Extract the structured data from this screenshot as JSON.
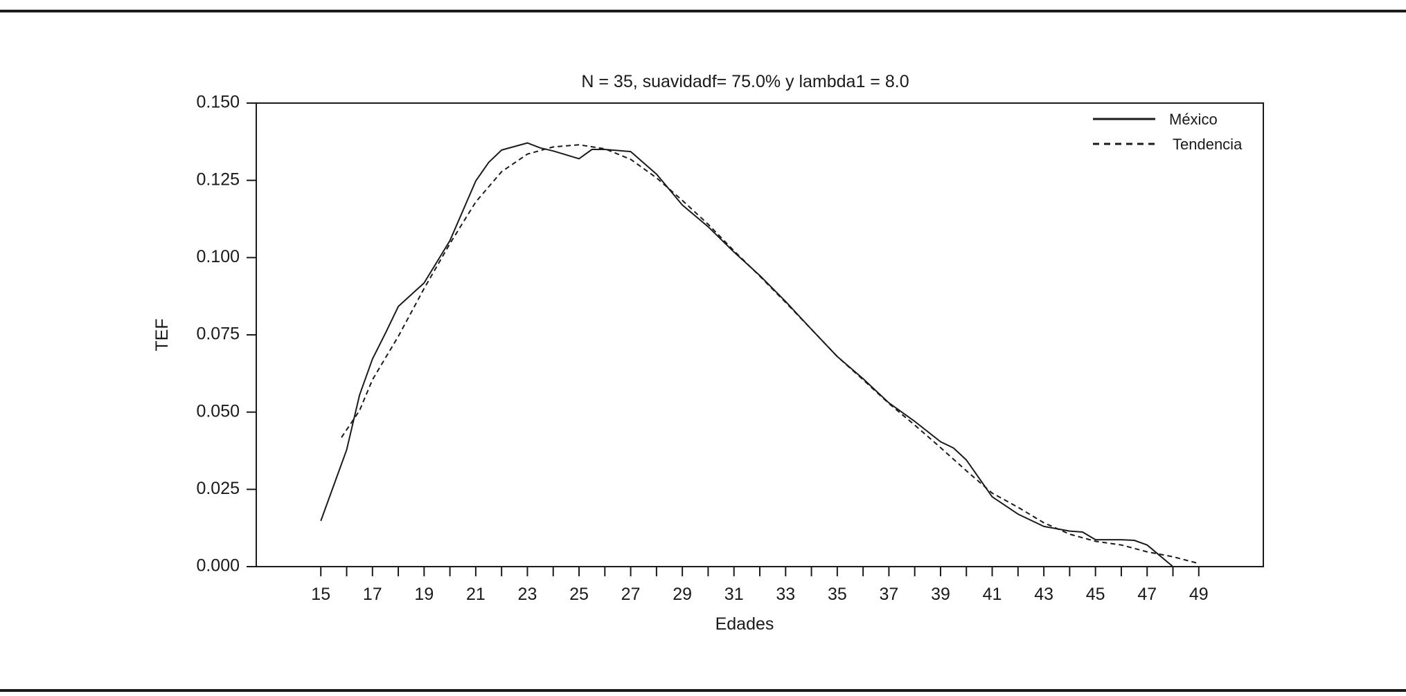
{
  "chart_data": {
    "type": "line",
    "title": "N = 35, suavidadf= 75.0% y lambda1 = 8.0",
    "xlabel": "Edades",
    "ylabel": "TEF",
    "xlim": [
      12.5,
      51.5
    ],
    "ylim": [
      0,
      0.15
    ],
    "x_ticks": [
      "15",
      "17",
      "19",
      "21",
      "23",
      "25",
      "27",
      "29",
      "31",
      "33",
      "35",
      "37",
      "39",
      "41",
      "43",
      "45",
      "47",
      "49"
    ],
    "y_ticks": [
      "0.000",
      "0.025",
      "0.050",
      "0.075",
      "0.100",
      "0.125",
      "0.150"
    ],
    "grid": false,
    "legend_position": "top-right",
    "series": [
      {
        "name": "México",
        "style": "solid",
        "x": [
          15,
          16,
          16.5,
          17,
          17.5,
          18,
          19,
          20,
          21,
          21.5,
          22,
          23,
          23.5,
          24,
          25,
          25.5,
          26,
          27,
          28,
          29,
          30,
          31,
          32,
          33,
          34,
          35,
          36,
          37,
          38,
          39,
          39.5,
          40,
          41,
          41.5,
          42,
          43,
          44,
          44.5,
          45,
          46,
          46.5,
          47,
          48
        ],
        "y": [
          0.0148,
          0.0378,
          0.0555,
          0.0672,
          0.0755,
          0.0842,
          0.0918,
          0.1055,
          0.1248,
          0.1308,
          0.1348,
          0.1371,
          0.1355,
          0.1345,
          0.132,
          0.135,
          0.135,
          0.1343,
          0.127,
          0.117,
          0.11,
          0.1018,
          0.0942,
          0.0858,
          0.0768,
          0.068,
          0.0608,
          0.053,
          0.047,
          0.0404,
          0.0384,
          0.0345,
          0.0226,
          0.0198,
          0.017,
          0.013,
          0.0115,
          0.0112,
          0.0087,
          0.0087,
          0.0085,
          0.007,
          0.0
        ]
      },
      {
        "name": "Tendencia",
        "style": "dashed",
        "x": [
          15.8,
          16.5,
          17,
          17.5,
          18,
          19,
          20,
          21,
          22,
          23,
          24,
          25,
          26,
          27,
          28,
          29,
          30,
          31,
          32,
          33,
          34,
          35,
          36,
          37,
          38,
          39,
          40,
          41,
          42,
          43,
          44,
          45,
          46,
          47,
          48,
          49
        ],
        "y": [
          0.0418,
          0.0505,
          0.0605,
          0.0675,
          0.0745,
          0.09,
          0.1045,
          0.118,
          0.1278,
          0.1335,
          0.1358,
          0.1365,
          0.1352,
          0.1318,
          0.1258,
          0.1185,
          0.1108,
          0.1022,
          0.094,
          0.0855,
          0.0768,
          0.068,
          0.0605,
          0.0528,
          0.0458,
          0.0385,
          0.031,
          0.0238,
          0.0192,
          0.0142,
          0.0105,
          0.0082,
          0.007,
          0.0048,
          0.0032,
          0.001
        ]
      }
    ]
  }
}
